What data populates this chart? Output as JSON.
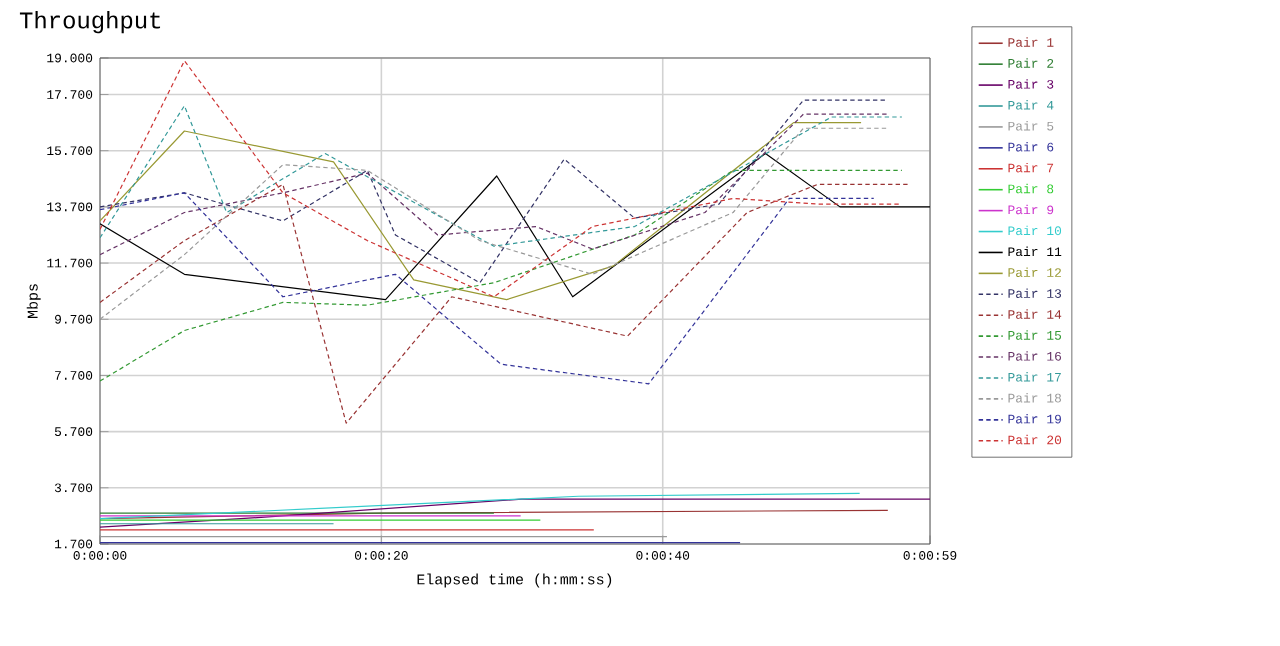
{
  "chart_data": {
    "type": "line",
    "title": "Throughput",
    "xlabel": "Elapsed time (h:mm:ss)",
    "ylabel": "Mbps",
    "xlim": [
      0,
      59
    ],
    "ylim": [
      1.7,
      19.0
    ],
    "xticks": [
      {
        "value": 0,
        "label": "0:00:00"
      },
      {
        "value": 20,
        "label": "0:00:20"
      },
      {
        "value": 40,
        "label": "0:00:40"
      },
      {
        "value": 59,
        "label": "0:00:59"
      }
    ],
    "yticks": [
      {
        "value": 1.7,
        "label": "1.700"
      },
      {
        "value": 3.7,
        "label": "3.700"
      },
      {
        "value": 5.7,
        "label": "5.700"
      },
      {
        "value": 7.7,
        "label": "7.700"
      },
      {
        "value": 9.7,
        "label": "9.700"
      },
      {
        "value": 11.7,
        "label": "11.700"
      },
      {
        "value": 13.7,
        "label": "13.700"
      },
      {
        "value": 15.7,
        "label": "15.700"
      },
      {
        "value": 17.7,
        "label": "17.700"
      },
      {
        "value": 19.0,
        "label": "19.000"
      }
    ],
    "grid": true,
    "legend": "right",
    "series": [
      {
        "name": "Pair 1",
        "color": "#993333",
        "line_style": "solid",
        "x": [
          0,
          20,
          56
        ],
        "values": [
          2.6,
          2.8,
          2.9
        ]
      },
      {
        "name": "Pair 2",
        "color": "#2e7d32",
        "line_style": "solid",
        "x": [
          0,
          28
        ],
        "values": [
          2.8,
          2.8
        ]
      },
      {
        "name": "Pair 3",
        "color": "#660066",
        "line_style": "solid",
        "x": [
          0,
          10,
          30,
          59
        ],
        "values": [
          2.3,
          2.6,
          3.3,
          3.3
        ]
      },
      {
        "name": "Pair 4",
        "color": "#339999",
        "line_style": "solid",
        "x": [
          0,
          16.6
        ],
        "values": [
          2.42,
          2.42
        ]
      },
      {
        "name": "Pair 5",
        "color": "#999999",
        "line_style": "solid",
        "x": [
          0,
          40.3
        ],
        "values": [
          1.96,
          1.96
        ]
      },
      {
        "name": "Pair 6",
        "color": "#333399",
        "line_style": "solid",
        "x": [
          0,
          45.5
        ],
        "values": [
          1.75,
          1.75
        ]
      },
      {
        "name": "Pair 7",
        "color": "#cc3333",
        "line_style": "solid",
        "x": [
          0,
          35.1
        ],
        "values": [
          2.2,
          2.2
        ]
      },
      {
        "name": "Pair 8",
        "color": "#33cc33",
        "line_style": "solid",
        "x": [
          0,
          31.3
        ],
        "values": [
          2.55,
          2.55
        ]
      },
      {
        "name": "Pair 9",
        "color": "#cc33cc",
        "line_style": "solid",
        "x": [
          0,
          29.9
        ],
        "values": [
          2.7,
          2.7
        ]
      },
      {
        "name": "Pair 10",
        "color": "#33cccc",
        "line_style": "solid",
        "x": [
          0,
          34,
          54
        ],
        "values": [
          2.6,
          3.4,
          3.5
        ]
      },
      {
        "name": "Pair 11",
        "color": "#000000",
        "line_style": "solid",
        "x": [
          0,
          6,
          20.3,
          28.2,
          33.6,
          47.3,
          52.6,
          59
        ],
        "values": [
          13.1,
          11.3,
          10.4,
          14.8,
          10.5,
          15.6,
          13.7,
          13.7
        ]
      },
      {
        "name": "Pair 12",
        "color": "#999933",
        "line_style": "solid",
        "x": [
          0,
          6,
          16.6,
          22.3,
          28.9,
          36.5,
          49.3,
          54.1
        ],
        "values": [
          13.2,
          16.4,
          15.3,
          11.1,
          10.4,
          11.6,
          16.7,
          16.7
        ]
      },
      {
        "name": "Pair 13",
        "color": "#333366",
        "line_style": "dashed",
        "x": [
          0,
          6,
          13,
          19,
          21,
          27,
          33,
          38,
          44,
          50,
          56
        ],
        "values": [
          13.7,
          14.2,
          13.2,
          15.0,
          12.7,
          11.0,
          15.4,
          13.3,
          13.8,
          17.5,
          17.5
        ]
      },
      {
        "name": "Pair 14",
        "color": "#993333",
        "line_style": "dashed",
        "x": [
          0,
          6,
          13,
          17.5,
          25,
          37.5,
          46,
          51,
          57.5
        ],
        "values": [
          10.3,
          12.5,
          14.5,
          6.0,
          10.5,
          9.1,
          13.5,
          14.5,
          14.5
        ]
      },
      {
        "name": "Pair 15",
        "color": "#339933",
        "line_style": "dashed",
        "x": [
          0,
          6,
          13,
          19,
          28,
          38,
          45,
          57
        ],
        "values": [
          7.5,
          9.3,
          10.3,
          10.2,
          11.0,
          12.7,
          15.0,
          15.0
        ]
      },
      {
        "name": "Pair 16",
        "color": "#663366",
        "line_style": "dashed",
        "x": [
          0,
          6,
          13,
          19,
          24,
          31,
          35,
          43,
          50,
          56
        ],
        "values": [
          12.0,
          13.5,
          14.2,
          14.9,
          12.7,
          13.0,
          12.2,
          13.5,
          17.0,
          17.0
        ]
      },
      {
        "name": "Pair 17",
        "color": "#339999",
        "line_style": "dashed",
        "x": [
          0,
          6,
          9,
          16,
          28,
          38,
          47,
          52,
          57
        ],
        "values": [
          12.6,
          17.3,
          13.5,
          15.6,
          12.3,
          13.0,
          15.5,
          16.9,
          16.9
        ]
      },
      {
        "name": "Pair 18",
        "color": "#999999",
        "line_style": "dashed",
        "x": [
          0,
          6,
          13,
          19,
          27,
          35,
          45,
          50,
          56
        ],
        "values": [
          9.7,
          12.0,
          15.2,
          15.0,
          12.5,
          11.3,
          13.5,
          16.5,
          16.5
        ]
      },
      {
        "name": "Pair 19",
        "color": "#333399",
        "line_style": "dashed",
        "x": [
          0,
          6,
          13,
          21,
          28.5,
          39,
          49,
          55
        ],
        "values": [
          13.6,
          14.2,
          10.5,
          11.3,
          8.1,
          7.4,
          14.0,
          14.0
        ]
      },
      {
        "name": "Pair 20",
        "color": "#cc3333",
        "line_style": "dashed",
        "x": [
          0,
          6,
          13,
          19,
          28,
          35,
          45,
          51,
          57
        ],
        "values": [
          12.9,
          18.9,
          14.2,
          12.5,
          10.5,
          13.0,
          14.0,
          13.8,
          13.8
        ]
      }
    ]
  }
}
